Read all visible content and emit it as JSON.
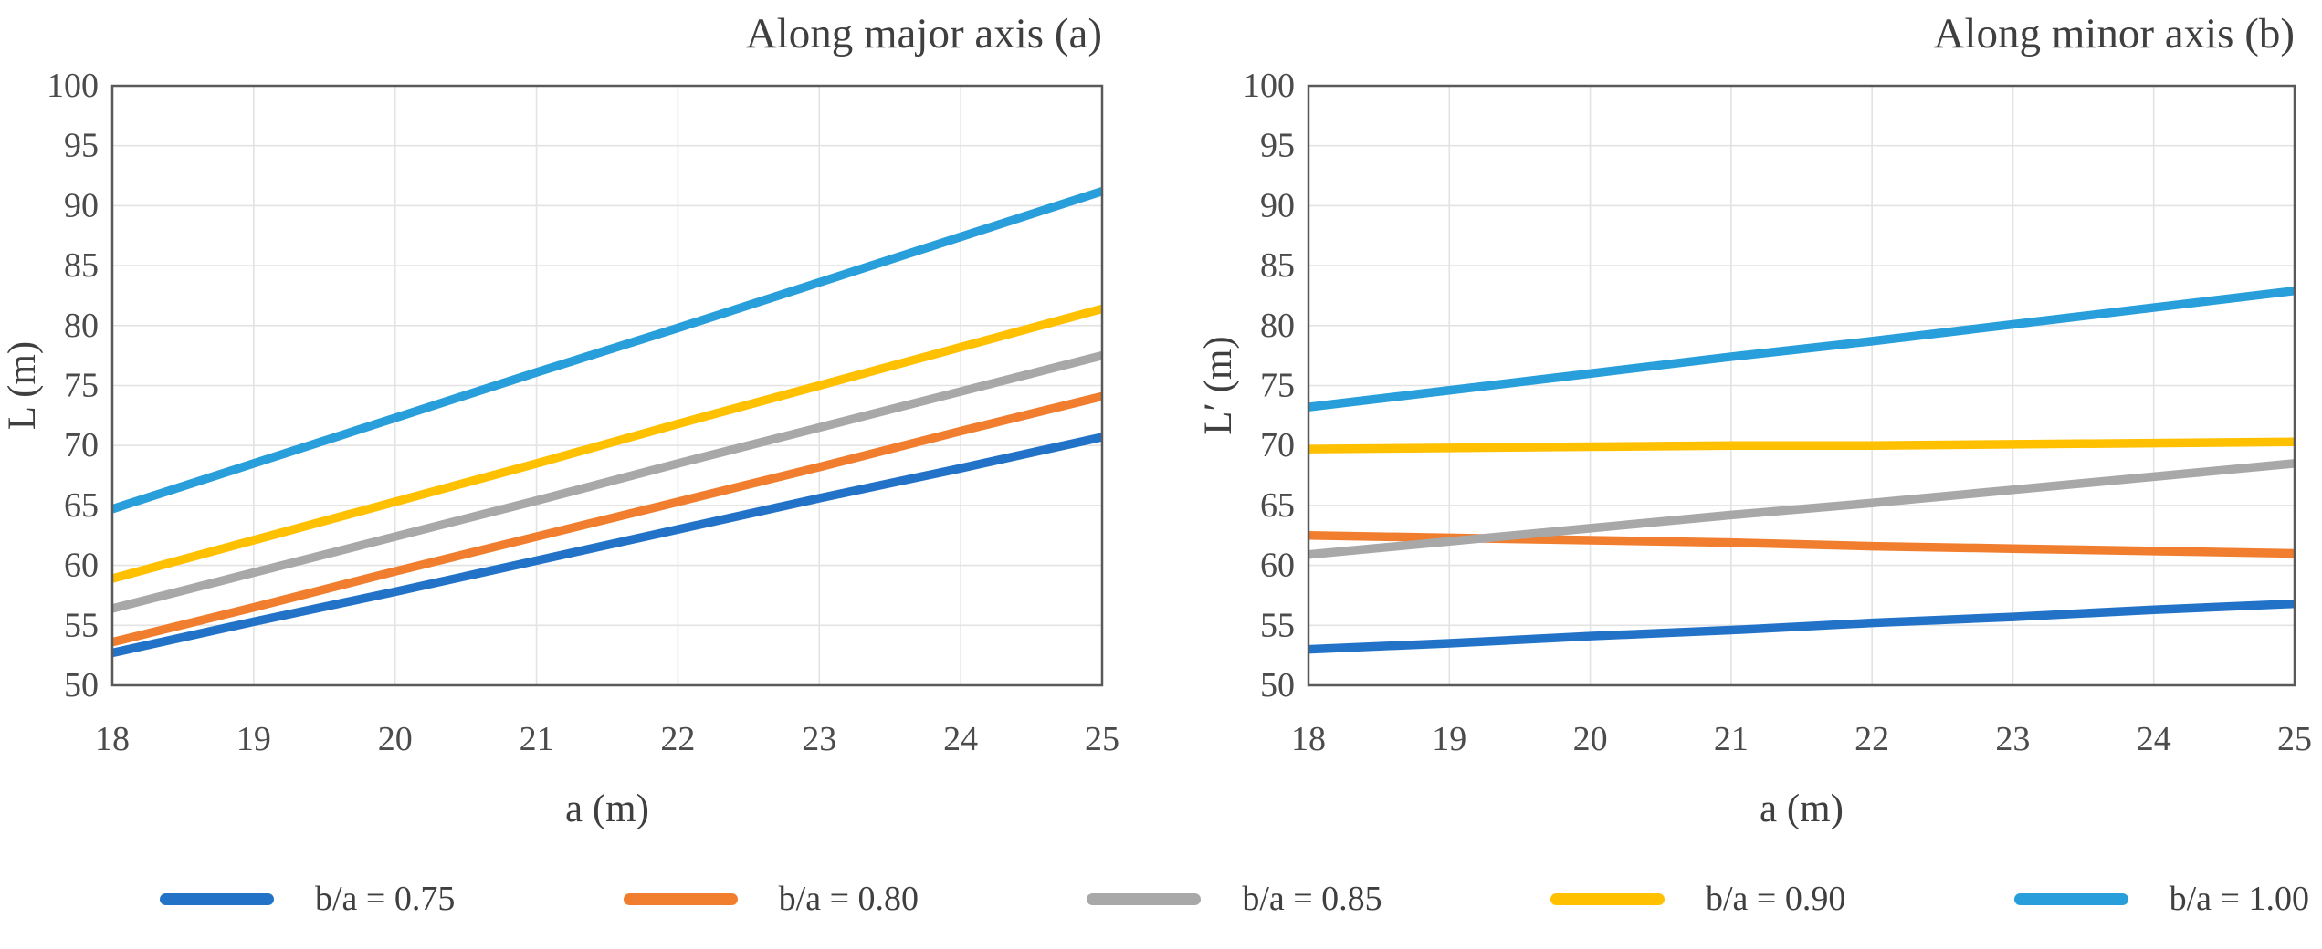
{
  "figure": {
    "background": "#ffffff",
    "text_color": "#3f3f3f",
    "tick_color": "#4b4b4b",
    "axis_color": "#595959",
    "gridline_color": "#e3e3e3"
  },
  "chart_data": [
    {
      "type": "line",
      "title": "Along major axis (a)",
      "xlabel": "a (m)",
      "ylabel": "L (m)",
      "x": [
        18,
        19,
        20,
        21,
        22,
        23,
        24,
        25
      ],
      "x_ticks": [
        18,
        19,
        20,
        21,
        22,
        23,
        24,
        25
      ],
      "y_ticks": [
        50,
        55,
        60,
        65,
        70,
        75,
        80,
        85,
        90,
        95,
        100
      ],
      "xlim": [
        18,
        25
      ],
      "ylim": [
        50,
        100
      ],
      "grid": true,
      "legend_position": "bottom-shared",
      "series": [
        {
          "name": "b/a = 0.75",
          "color": "#2273C8",
          "values": [
            52.7,
            55.3,
            57.8,
            60.4,
            63.0,
            65.6,
            68.1,
            70.7
          ]
        },
        {
          "name": "b/a = 0.80",
          "color": "#F07E2E",
          "values": [
            53.6,
            56.5,
            59.5,
            62.4,
            65.3,
            68.2,
            71.2,
            74.1
          ]
        },
        {
          "name": "b/a = 0.85",
          "color": "#A8A8A8",
          "values": [
            56.4,
            59.4,
            62.4,
            65.4,
            68.5,
            71.5,
            74.5,
            77.5
          ]
        },
        {
          "name": "b/a = 0.90",
          "color": "#FFC000",
          "values": [
            58.9,
            62.1,
            65.3,
            68.5,
            71.8,
            75.0,
            78.2,
            81.4
          ]
        },
        {
          "name": "b/a = 1.00",
          "color": "#289FDA",
          "values": [
            64.7,
            68.5,
            72.3,
            76.1,
            79.8,
            83.6,
            87.4,
            91.2
          ]
        }
      ]
    },
    {
      "type": "line",
      "title": "Along minor axis (b)",
      "xlabel": "a (m)",
      "ylabel": "L′ (m)",
      "x": [
        18,
        19,
        20,
        21,
        22,
        23,
        24,
        25
      ],
      "x_ticks": [
        18,
        19,
        20,
        21,
        22,
        23,
        24,
        25
      ],
      "y_ticks": [
        50,
        55,
        60,
        65,
        70,
        75,
        80,
        85,
        90,
        95,
        100
      ],
      "xlim": [
        18,
        25
      ],
      "ylim": [
        50,
        100
      ],
      "grid": true,
      "legend_position": "bottom-shared",
      "series": [
        {
          "name": "b/a = 0.75",
          "color": "#2273C8",
          "values": [
            53.0,
            53.5,
            54.1,
            54.6,
            55.2,
            55.7,
            56.3,
            56.8
          ]
        },
        {
          "name": "b/a = 0.80",
          "color": "#F07E2E",
          "values": [
            62.5,
            62.3,
            62.1,
            61.9,
            61.6,
            61.4,
            61.2,
            61.0
          ]
        },
        {
          "name": "b/a = 0.85",
          "color": "#A8A8A8",
          "values": [
            60.9,
            62.0,
            63.1,
            64.2,
            65.2,
            66.3,
            67.4,
            68.5
          ]
        },
        {
          "name": "b/a = 0.90",
          "color": "#FFC000",
          "values": [
            69.7,
            69.8,
            69.9,
            70.0,
            70.0,
            70.1,
            70.2,
            70.3
          ]
        },
        {
          "name": "b/a = 1.00",
          "color": "#289FDA",
          "values": [
            73.2,
            74.6,
            76.0,
            77.4,
            78.7,
            80.1,
            81.5,
            82.9
          ]
        }
      ]
    }
  ],
  "legend": {
    "items": [
      {
        "label": "b/a = 0.75",
        "color": "#2273C8"
      },
      {
        "label": "b/a = 0.80",
        "color": "#F07E2E"
      },
      {
        "label": "b/a = 0.85",
        "color": "#A8A8A8"
      },
      {
        "label": "b/a = 0.90",
        "color": "#FFC000"
      },
      {
        "label": "b/a = 1.00",
        "color": "#289FDA"
      }
    ]
  }
}
